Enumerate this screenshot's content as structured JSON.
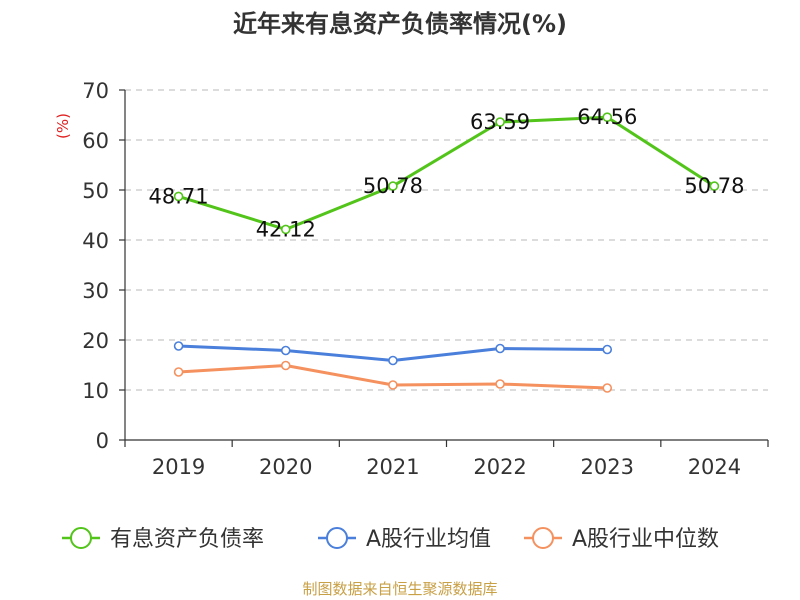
{
  "chart_data": {
    "type": "line",
    "title": "近年来有息资产负债率情况(%)",
    "ylabel": "(%)",
    "xlabel": "",
    "ylim": [
      0,
      70
    ],
    "yticks": [
      0,
      10,
      20,
      30,
      40,
      50,
      60,
      70
    ],
    "grid": true,
    "legend_position": "bottom",
    "categories": [
      "2019",
      "2020",
      "2021",
      "2022",
      "2023",
      "2024"
    ],
    "series": [
      {
        "name": "有息资产负债率",
        "color": "#52c41a",
        "values": [
          48.71,
          42.12,
          50.78,
          63.59,
          64.56,
          50.78
        ],
        "data_labels": [
          "48.71",
          "42.12",
          "50.78",
          "63.59",
          "64.56",
          "50.78"
        ]
      },
      {
        "name": "A股行业均值",
        "color": "#4a7fdb",
        "values": [
          18.8,
          17.9,
          15.9,
          18.3,
          18.1,
          null
        ]
      },
      {
        "name": "A股行业中位数",
        "color": "#f5915e",
        "values": [
          13.6,
          14.9,
          11.0,
          11.2,
          10.4,
          null
        ]
      }
    ],
    "source": "制图数据来自恒生聚源数据库",
    "colors": {
      "title": "#333333",
      "axis": "#333333",
      "grid": "#c8c8c8",
      "ylabel": "#e02020",
      "source": "#c8a046"
    }
  }
}
